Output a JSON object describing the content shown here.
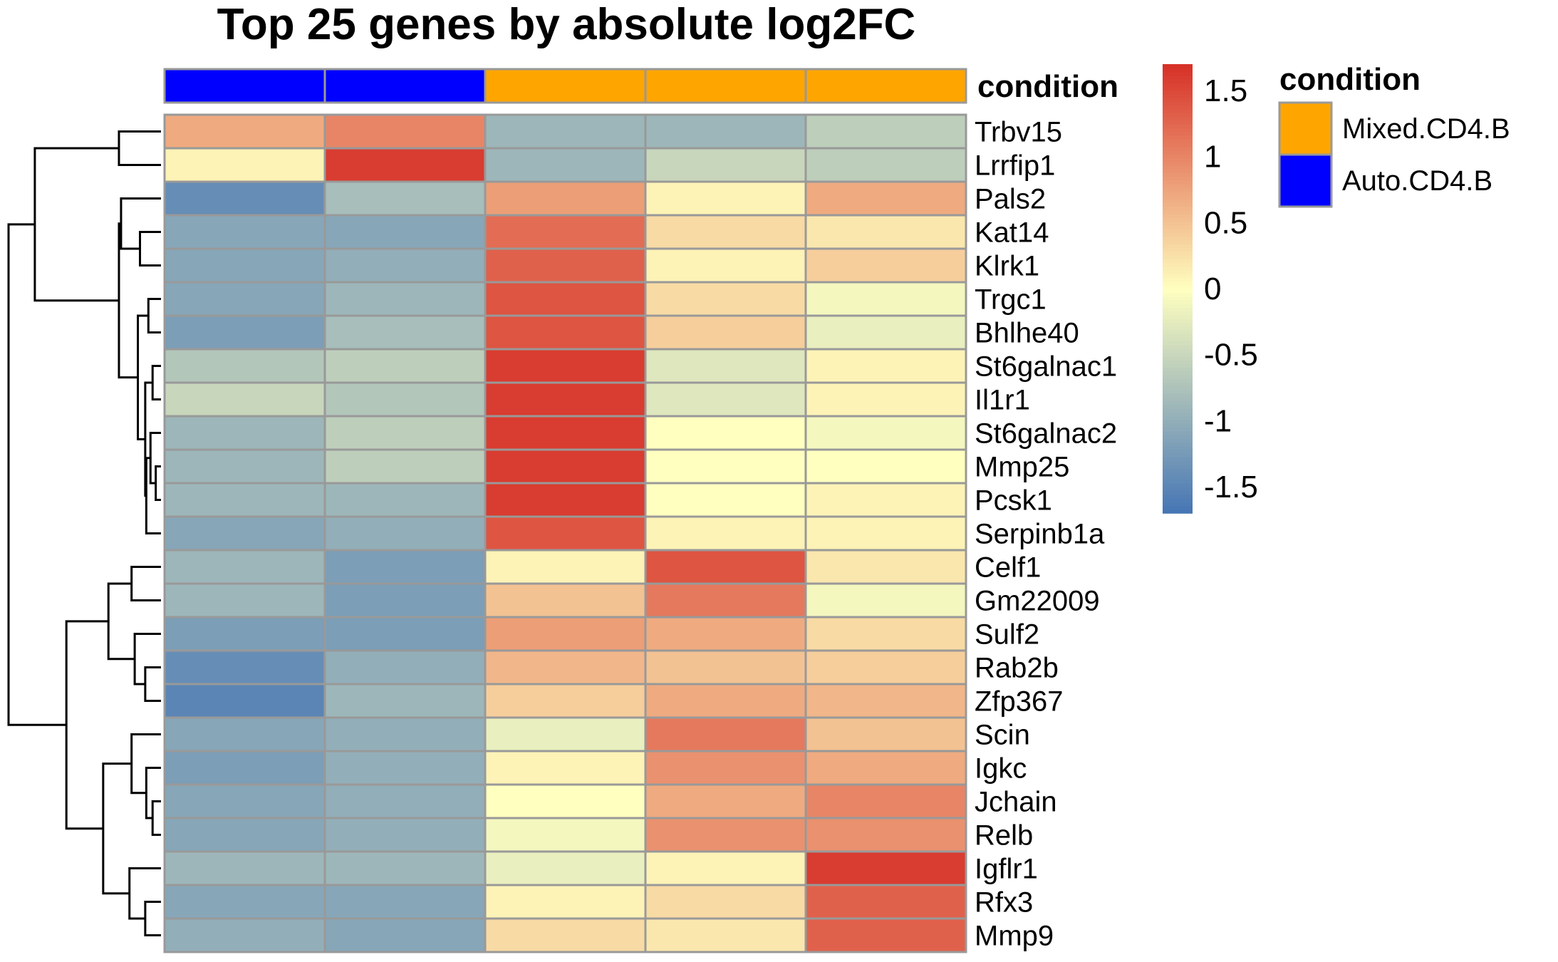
{
  "chart_data": {
    "type": "heatmap",
    "title": "Top 25 genes by absolute log2FC",
    "rows": [
      "Trbv15",
      "Lrrfip1",
      "Pals2",
      "Kat14",
      "Klrk1",
      "Trgc1",
      "Bhlhe40",
      "St6galnac1",
      "Il1r1",
      "St6galnac2",
      "Mmp25",
      "Pcsk1",
      "Serpinb1a",
      "Celf1",
      "Gm22009",
      "Sulf2",
      "Rab2b",
      "Zfp367",
      "Scin",
      "Igkc",
      "Jchain",
      "Relb",
      "Igflr1",
      "Rfx3",
      "Mmp9"
    ],
    "columns": [
      {
        "condition": "Auto.CD4.B"
      },
      {
        "condition": "Auto.CD4.B"
      },
      {
        "condition": "Mixed.CD4.B"
      },
      {
        "condition": "Mixed.CD4.B"
      },
      {
        "condition": "Mixed.CD4.B"
      }
    ],
    "values": [
      [
        0.7,
        1.0,
        -0.9,
        -0.9,
        -0.6
      ],
      [
        0.1,
        1.6,
        -0.9,
        -0.5,
        -0.6
      ],
      [
        -1.4,
        -0.8,
        0.8,
        0.1,
        0.7
      ],
      [
        -1.1,
        -1.1,
        1.2,
        0.3,
        0.2
      ],
      [
        -1.1,
        -1.0,
        1.3,
        0.1,
        0.4
      ],
      [
        -1.1,
        -0.9,
        1.4,
        0.3,
        -0.1
      ],
      [
        -1.2,
        -0.8,
        1.4,
        0.4,
        -0.2
      ],
      [
        -0.7,
        -0.6,
        1.6,
        -0.3,
        0.1
      ],
      [
        -0.5,
        -0.7,
        1.6,
        -0.3,
        0.1
      ],
      [
        -0.9,
        -0.6,
        1.6,
        -0.0,
        -0.1
      ],
      [
        -0.9,
        -0.6,
        1.6,
        -0.0,
        0.0
      ],
      [
        -0.9,
        -0.9,
        1.6,
        -0.0,
        0.1
      ],
      [
        -1.1,
        -1.0,
        1.4,
        0.1,
        0.1
      ],
      [
        -0.9,
        -1.2,
        0.1,
        1.4,
        0.2
      ],
      [
        -0.9,
        -1.2,
        0.5,
        1.1,
        -0.1
      ],
      [
        -1.2,
        -1.2,
        0.8,
        0.7,
        0.3
      ],
      [
        -1.4,
        -1.0,
        0.6,
        0.5,
        0.4
      ],
      [
        -1.5,
        -0.9,
        0.4,
        0.7,
        0.6
      ],
      [
        -1.1,
        -1.0,
        -0.2,
        1.1,
        0.5
      ],
      [
        -1.2,
        -1.0,
        0.1,
        0.9,
        0.7
      ],
      [
        -1.1,
        -1.0,
        0.0,
        0.7,
        1.0
      ],
      [
        -1.1,
        -1.0,
        -0.1,
        0.9,
        0.9
      ],
      [
        -0.9,
        -0.9,
        -0.2,
        0.1,
        1.6
      ],
      [
        -1.1,
        -1.1,
        0.1,
        0.3,
        1.3
      ],
      [
        -1.0,
        -1.1,
        0.3,
        0.2,
        1.3
      ]
    ],
    "color_scale": {
      "min": -1.7,
      "max": 1.7,
      "low_color": "#4575B4",
      "mid_color": "#FFFFBF",
      "high_color": "#D73027",
      "ticks": [
        -1.5,
        -1,
        -0.5,
        0,
        0.5,
        1,
        1.5
      ],
      "tick_labels": [
        "-1.5",
        "-1",
        "-0.5",
        "0",
        "0.5",
        "1",
        "1.5"
      ]
    },
    "annotation": {
      "label": "condition",
      "legend_title": "condition",
      "legend": [
        {
          "name": "Mixed.CD4.B",
          "color": "#FFA500"
        },
        {
          "name": "Auto.CD4.B",
          "color": "#0000FF"
        }
      ]
    },
    "row_dendrogram": {
      "leaves": [
        0,
        1,
        2,
        3,
        4,
        5,
        6,
        7,
        8,
        9,
        10,
        11,
        12,
        13,
        14,
        15,
        16,
        17,
        18,
        19,
        20,
        21,
        22,
        23,
        24
      ],
      "merges": [
        [
          -1,
          -2,
          0.4
        ],
        [
          -4,
          -5,
          0.2
        ],
        [
          -3,
          2,
          0.38
        ],
        [
          -6,
          -7,
          0.12
        ],
        [
          -8,
          -9,
          0.08
        ],
        [
          -11,
          -12,
          0.05
        ],
        [
          -10,
          6,
          0.1
        ],
        [
          -13,
          7,
          0.14
        ],
        [
          5,
          8,
          0.15
        ],
        [
          4,
          9,
          0.22
        ],
        [
          3,
          10,
          0.4
        ],
        [
          1,
          11,
          1.2
        ],
        [
          -14,
          -15,
          0.28
        ],
        [
          -17,
          -18,
          0.15
        ],
        [
          -16,
          14,
          0.25
        ],
        [
          13,
          15,
          0.5
        ],
        [
          -21,
          -22,
          0.08
        ],
        [
          -20,
          17,
          0.14
        ],
        [
          -19,
          18,
          0.28
        ],
        [
          -24,
          -25,
          0.15
        ],
        [
          -23,
          20,
          0.3
        ],
        [
          19,
          21,
          0.55
        ],
        [
          16,
          22,
          0.9
        ],
        [
          12,
          23,
          1.45
        ]
      ],
      "max_height": 1.45
    }
  }
}
